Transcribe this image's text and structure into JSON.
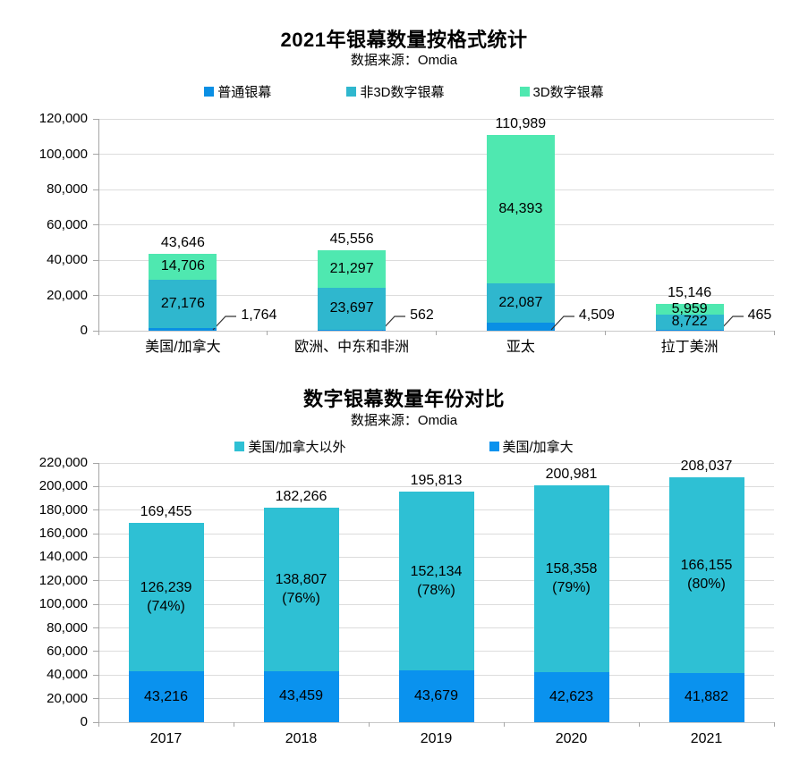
{
  "page": {
    "background": "#ffffff"
  },
  "colors": {
    "gridline": "#DCDCDC",
    "y_axis": "#A6A6A6",
    "x_axis": "#C9C9C9",
    "tick": "#A6A6A6",
    "text": "#000000",
    "callout_line": "#333333"
  },
  "chart_data": [
    {
      "type": "bar",
      "stacked": true,
      "title": "2021年银幕数量按格式统计",
      "subtitle": "数据来源：Omdia",
      "categories": [
        "美国/加拿大",
        "欧洲、中东和非洲",
        "亚太",
        "拉丁美洲"
      ],
      "series": [
        {
          "name": "普通银幕",
          "color": "#0A8FE4",
          "values": [
            1764,
            562,
            4509,
            465
          ],
          "label_style": "callout"
        },
        {
          "name": "非3D数字银幕",
          "color": "#2FB7CE",
          "values": [
            27176,
            23697,
            22087,
            8722
          ],
          "label_style": "inside"
        },
        {
          "name": "3D数字银幕",
          "color": "#4FE8B0",
          "values": [
            14706,
            21297,
            84393,
            5959
          ],
          "label_style": "inside"
        }
      ],
      "totals": [
        43646,
        45556,
        110989,
        15146
      ],
      "legend_order": [
        0,
        1,
        2
      ],
      "ylim": [
        0,
        120000
      ],
      "ytick_step": 20000,
      "grid": true,
      "legend_position": "top"
    },
    {
      "type": "bar",
      "stacked": true,
      "title": "数字银幕数量年份对比",
      "subtitle": "数据来源：Omdia",
      "categories": [
        "2017",
        "2018",
        "2019",
        "2020",
        "2021"
      ],
      "series": [
        {
          "name": "美国/加拿大",
          "color": "#0A92EE",
          "values": [
            43216,
            43459,
            43679,
            42623,
            41882
          ],
          "label_style": "inside"
        },
        {
          "name": "美国/加拿大以外",
          "color": "#2EC0D4",
          "values": [
            126239,
            138807,
            152134,
            158358,
            166155
          ],
          "sub_labels": [
            "(74%)",
            "(76%)",
            "(78%)",
            "(79%)",
            "(80%)"
          ],
          "label_style": "inside"
        }
      ],
      "totals": [
        169455,
        182266,
        195813,
        200981,
        208037
      ],
      "legend_order": [
        1,
        0
      ],
      "ylim": [
        0,
        220000
      ],
      "ytick_step": 20000,
      "grid": true,
      "legend_position": "top"
    }
  ]
}
